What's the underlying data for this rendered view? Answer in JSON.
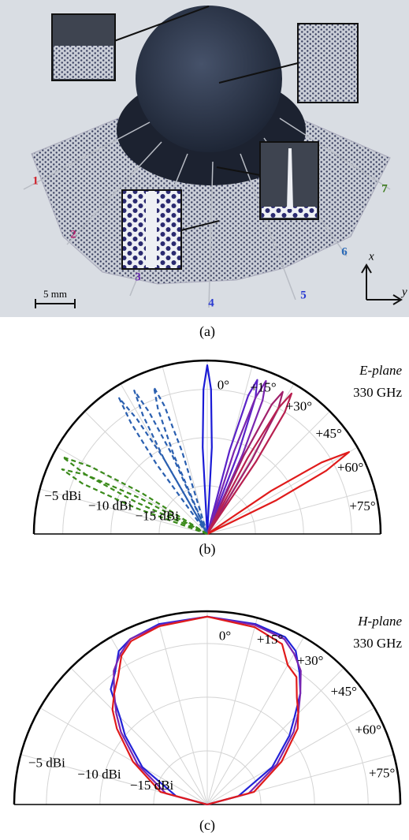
{
  "photo": {
    "labels": [
      {
        "text": "1",
        "color": "#d0202a"
      },
      {
        "text": "2",
        "color": "#b0206a"
      },
      {
        "text": "3",
        "color": "#6a2ab0"
      },
      {
        "text": "4",
        "color": "#2a3ad0"
      },
      {
        "text": "5",
        "color": "#2a3ad0"
      },
      {
        "text": "6",
        "color": "#2a6ab8"
      },
      {
        "text": "7",
        "color": "#3a7a1a"
      }
    ],
    "scale_bar": "5 mm",
    "axis_x": "x",
    "axis_y": "y"
  },
  "captions": [
    "(a)",
    "(b)",
    "(c)"
  ],
  "chart_data": [
    {
      "type": "polar",
      "annotations": [
        "E-plane",
        "330 GHz"
      ],
      "rlim": [
        -20,
        -2
      ],
      "rticks": [
        {
          "value": -5,
          "label": "−5 dBi"
        },
        {
          "value": -10,
          "label": "−10 dBi"
        },
        {
          "value": -15,
          "label": "−15 dBi"
        }
      ],
      "thetaticks": [
        {
          "value": 0,
          "label": "0°"
        },
        {
          "value": 15,
          "label": "+15°"
        },
        {
          "value": 30,
          "label": "+30°"
        },
        {
          "value": 45,
          "label": "+45°"
        },
        {
          "value": 60,
          "label": "+60°"
        },
        {
          "value": 75,
          "label": "+75°"
        }
      ],
      "thetagrid": [
        -75,
        -60,
        -45,
        -30,
        -15
      ],
      "series": [
        {
          "color": "#1a1ad6",
          "dash": false,
          "theta": [
            -5,
            -3,
            -1.5,
            0,
            1.5,
            3,
            5
          ],
          "values": [
            -20,
            -11,
            -5,
            -2.5,
            -5,
            -11,
            -20
          ]
        },
        {
          "color": "#5a22c8",
          "dash": false,
          "theta": [
            13,
            15,
            16.5,
            18,
            19.5,
            21,
            23
          ],
          "values": [
            -20,
            -11,
            -5,
            -3.2,
            -5,
            -11,
            -20
          ]
        },
        {
          "color": "#7a26b0",
          "dash": false,
          "theta": [
            16,
            18,
            19.5,
            21,
            22.5,
            24,
            26
          ],
          "values": [
            -20,
            -11,
            -5,
            -3,
            -5,
            -11,
            -20
          ]
        },
        {
          "color": "#a0206b",
          "dash": false,
          "theta": [
            23,
            25,
            26.5,
            28,
            29.5,
            31,
            33
          ],
          "values": [
            -20,
            -11,
            -5,
            -3.3,
            -5,
            -11,
            -20
          ]
        },
        {
          "color": "#b82050",
          "dash": false,
          "theta": [
            26,
            28,
            29.5,
            31,
            32.5,
            34,
            36
          ],
          "values": [
            -20,
            -11,
            -5,
            -3,
            -5,
            -11,
            -20
          ]
        },
        {
          "color": "#e01b1b",
          "dash": false,
          "theta": [
            53,
            56,
            58,
            60,
            62,
            64,
            67
          ],
          "values": [
            -20,
            -12,
            -6,
            -3,
            -6,
            -12,
            -20
          ]
        },
        {
          "color": "#2a5fb0",
          "dash": true,
          "theta": [
            -25,
            -23,
            -21.5,
            -20,
            -18.5,
            -17,
            -15
          ],
          "values": [
            -20,
            -11,
            -6,
            -3.8,
            -6,
            -11,
            -20
          ]
        },
        {
          "color": "#2a5fb0",
          "dash": true,
          "theta": [
            -32,
            -30,
            -28.5,
            -27,
            -25.5,
            -24,
            -22
          ],
          "values": [
            -20,
            -11,
            -6,
            -3.3,
            -6,
            -11,
            -20
          ]
        },
        {
          "color": "#2a5fb0",
          "dash": true,
          "theta": [
            -38,
            -36,
            -34.5,
            -33,
            -31.5,
            -30,
            -28
          ],
          "values": [
            -20,
            -11,
            -6,
            -3.2,
            -6,
            -11,
            -20
          ]
        },
        {
          "color": "#3a8a1a",
          "dash": true,
          "theta": [
            -69,
            -66,
            -64,
            -62,
            -60,
            -58,
            -55
          ],
          "values": [
            -20,
            -12,
            -6,
            -3,
            -6,
            -12,
            -20
          ]
        },
        {
          "color": "#3a8a1a",
          "dash": true,
          "theta": [
            -72,
            -70,
            -68,
            -66,
            -64,
            -62,
            -60
          ],
          "values": [
            -20,
            -12,
            -6,
            -3.5,
            -6,
            -12,
            -20
          ]
        }
      ]
    },
    {
      "type": "polar",
      "annotations": [
        "H-plane",
        "330 GHz"
      ],
      "rlim": [
        -20,
        -2
      ],
      "rticks": [
        {
          "value": -5,
          "label": "−5 dBi"
        },
        {
          "value": -10,
          "label": "−10 dBi"
        },
        {
          "value": -15,
          "label": "−15 dBi"
        }
      ],
      "thetaticks": [
        {
          "value": 0,
          "label": "0°"
        },
        {
          "value": 15,
          "label": "+15°"
        },
        {
          "value": 30,
          "label": "+30°"
        },
        {
          "value": 45,
          "label": "+45°"
        },
        {
          "value": 60,
          "label": "+60°"
        },
        {
          "value": 75,
          "label": "+75°"
        }
      ],
      "thetagrid": [
        -75,
        -60,
        -45,
        -30,
        -15
      ],
      "series": [
        {
          "color": "#2222d8",
          "dash": false,
          "theta": [
            -90,
            -75,
            -60,
            -50,
            -45,
            -40,
            -35,
            -30,
            -25,
            -15,
            0,
            15,
            25,
            30,
            35,
            40,
            45,
            50,
            60,
            75,
            90
          ],
          "values": [
            -20,
            -17,
            -13,
            -10,
            -8.5,
            -6,
            -5,
            -3.5,
            -3,
            -2.6,
            -2.5,
            -2.6,
            -2.8,
            -3.5,
            -5,
            -6.5,
            -8.5,
            -10,
            -13,
            -17,
            -20
          ]
        },
        {
          "color": "#7a26b0",
          "dash": false,
          "theta": [
            -90,
            -75,
            -60,
            -50,
            -45,
            -40,
            -35,
            -30,
            -25,
            -15,
            0,
            15,
            25,
            30,
            35,
            40,
            45,
            50,
            60,
            75,
            90
          ],
          "values": [
            -20,
            -16,
            -12.5,
            -9.5,
            -8,
            -6.5,
            -4.8,
            -3.8,
            -3,
            -2.7,
            -2.5,
            -2.7,
            -3,
            -3.8,
            -4.8,
            -6.5,
            -8,
            -9.5,
            -12.5,
            -16,
            -20
          ]
        },
        {
          "color": "#e01b1b",
          "dash": false,
          "theta": [
            -90,
            -75,
            -60,
            -50,
            -45,
            -40,
            -35,
            -30,
            -25,
            -15,
            0,
            15,
            25,
            30,
            35,
            40,
            45,
            50,
            60,
            75,
            90
          ],
          "values": [
            -20,
            -15.5,
            -12,
            -9,
            -7.5,
            -6.5,
            -5.5,
            -4,
            -3.2,
            -2.8,
            -2.5,
            -2.9,
            -3.5,
            -5,
            -5.5,
            -7,
            -8,
            -9,
            -12,
            -15.5,
            -20
          ]
        }
      ]
    }
  ]
}
